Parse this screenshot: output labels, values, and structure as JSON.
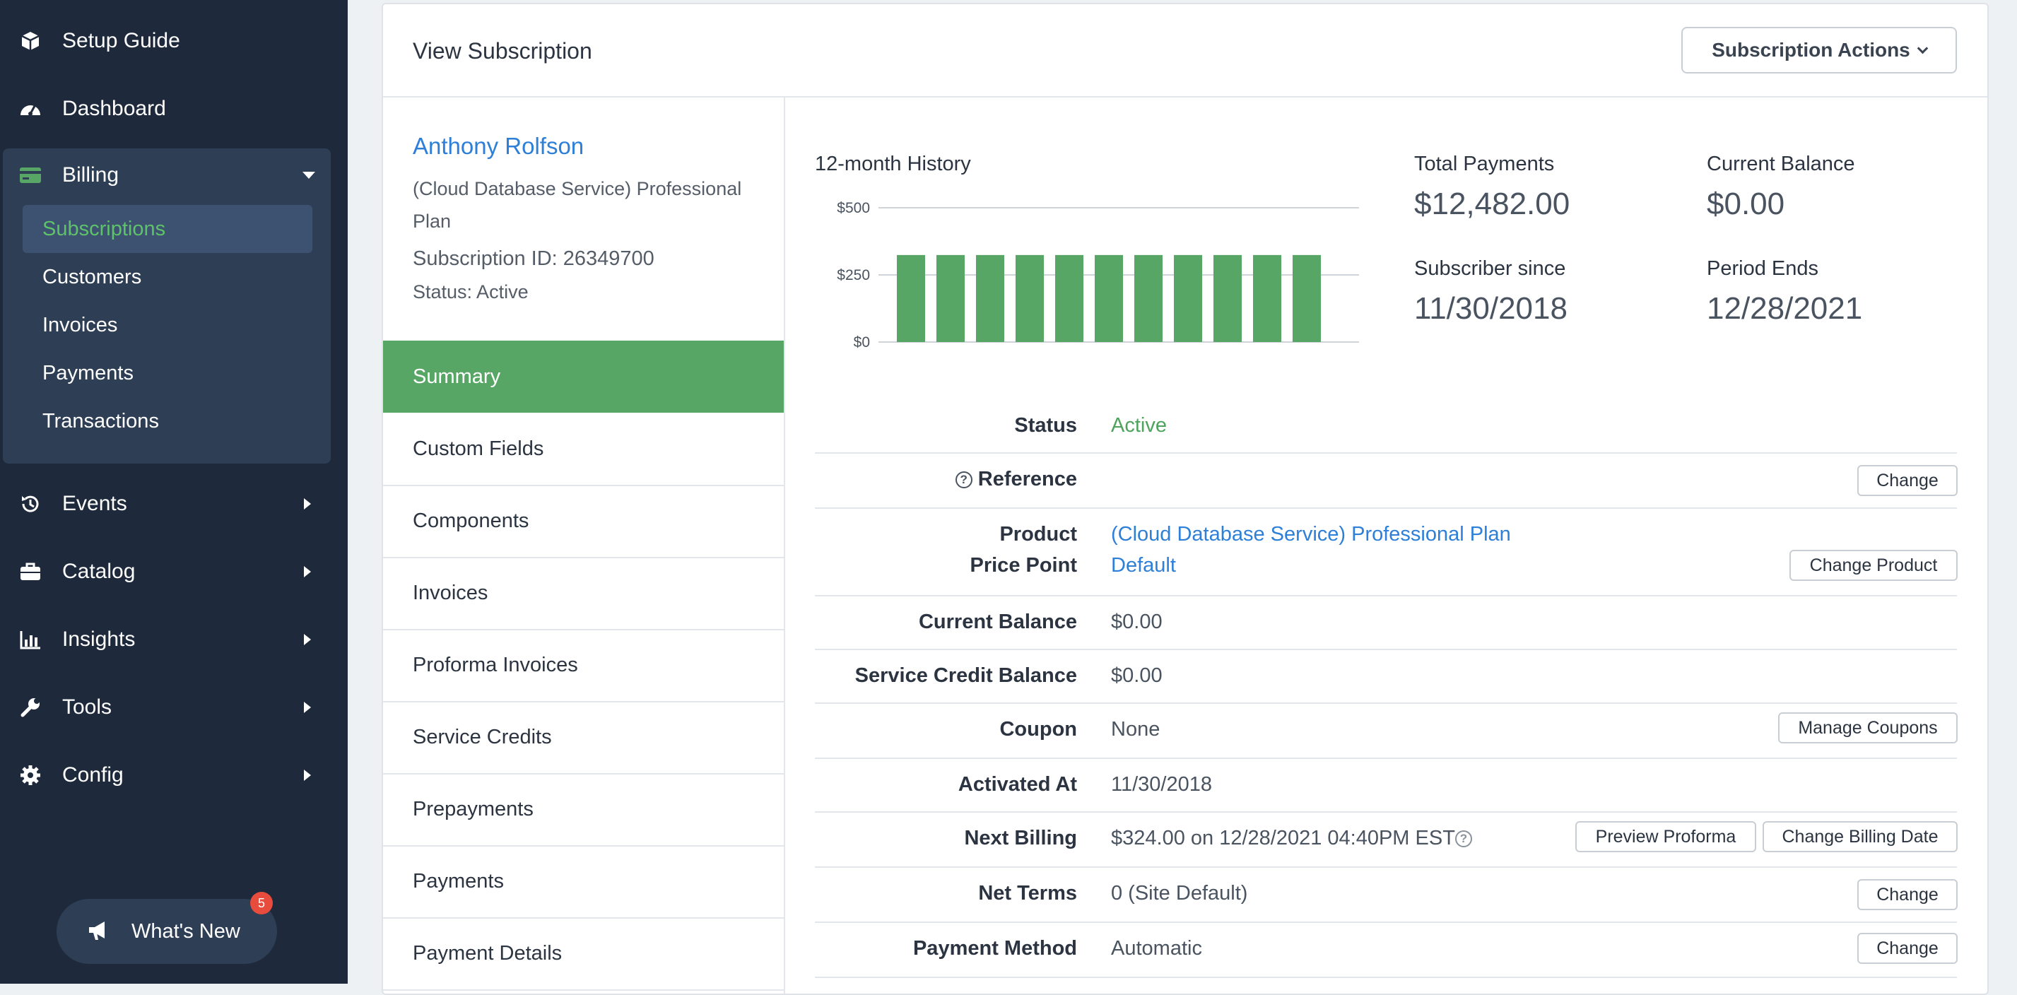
{
  "sidebar": {
    "items": [
      {
        "label": "Setup Guide",
        "icon": "box-icon"
      },
      {
        "label": "Dashboard",
        "icon": "gauge-icon"
      },
      {
        "label": "Billing",
        "icon": "credit-card-icon"
      },
      {
        "label": "Events",
        "icon": "history-icon"
      },
      {
        "label": "Catalog",
        "icon": "briefcase-icon"
      },
      {
        "label": "Insights",
        "icon": "bar-chart-icon"
      },
      {
        "label": "Tools",
        "icon": "wrench-icon"
      },
      {
        "label": "Config",
        "icon": "gear-icon"
      }
    ],
    "billing_sub": [
      "Subscriptions",
      "Customers",
      "Invoices",
      "Payments",
      "Transactions"
    ],
    "whats_new": {
      "label": "What's New",
      "badge": "5"
    }
  },
  "header": {
    "title": "View Subscription",
    "actions_label": "Subscription Actions"
  },
  "customer": {
    "name": "Anthony Rolfson",
    "plan": "(Cloud Database Service) Professional Plan",
    "subscription_id": "Subscription ID: 26349700",
    "status": "Status: Active"
  },
  "tabs": [
    "Summary",
    "Custom Fields",
    "Components",
    "Invoices",
    "Proforma Invoices",
    "Service Credits",
    "Prepayments",
    "Payments",
    "Payment Details"
  ],
  "chart_data": {
    "type": "bar",
    "title": "12-month History",
    "yticks": [
      "$500",
      "$250",
      "$0"
    ],
    "ylim": [
      0,
      500
    ],
    "values": [
      324,
      324,
      324,
      324,
      324,
      324,
      324,
      324,
      324,
      324,
      324
    ],
    "color": "#58a665",
    "grid": true
  },
  "stats": {
    "total_payments_label": "Total Payments",
    "total_payments": "$12,482.00",
    "current_balance_label": "Current Balance",
    "current_balance": "$0.00",
    "subscriber_since_label": "Subscriber since",
    "subscriber_since": "11/30/2018",
    "period_ends_label": "Period Ends",
    "period_ends": "12/28/2021"
  },
  "details": {
    "status_label": "Status",
    "status": "Active",
    "reference_label": "Reference",
    "reference_btn": "Change",
    "product_label": "Product",
    "product": "(Cloud Database Service) Professional Plan",
    "price_point_label": "Price Point",
    "price_point": "Default",
    "change_product_btn": "Change Product",
    "current_balance_label": "Current Balance",
    "current_balance": "$0.00",
    "service_credit_label": "Service Credit Balance",
    "service_credit": "$0.00",
    "coupon_label": "Coupon",
    "coupon": "None",
    "manage_coupons_btn": "Manage Coupons",
    "activated_label": "Activated At",
    "activated": "11/30/2018",
    "next_billing_label": "Next Billing",
    "next_billing": "$324.00 on 12/28/2021 04:40PM EST",
    "preview_proforma_btn": "Preview Proforma",
    "change_billing_date_btn": "Change Billing Date",
    "net_terms_label": "Net Terms",
    "net_terms": "0 (Site Default)",
    "net_terms_btn": "Change",
    "payment_method_label": "Payment Method",
    "payment_method": "Automatic",
    "payment_method_btn": "Change"
  },
  "colors": {
    "sidebar_bg": "#1e2a3b",
    "sidebar_group_bg": "#2d3e55",
    "accent_green": "#58a665",
    "link_blue": "#2d7fd8",
    "badge_red": "#e74c3c"
  }
}
